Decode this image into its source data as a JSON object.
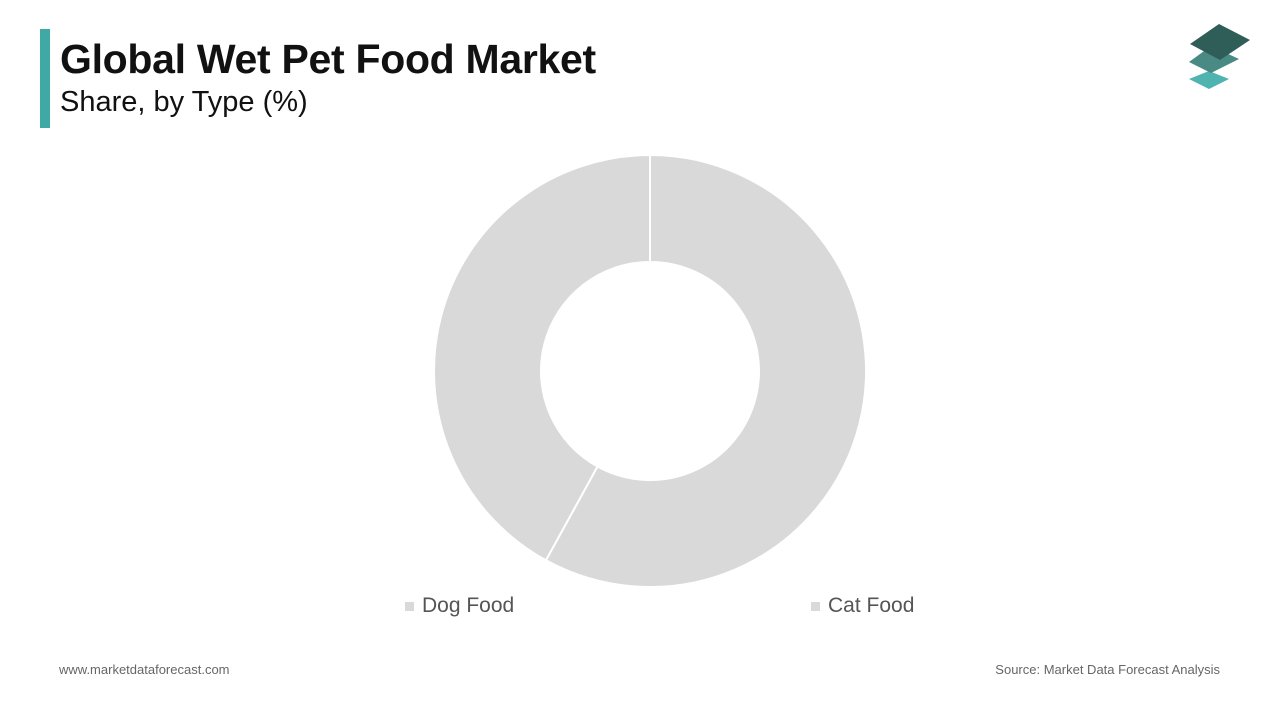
{
  "header": {
    "title": "Global Wet Pet Food Market",
    "subtitle": "Share, by Type (%)",
    "accent_color": "#3fa9a6"
  },
  "logo": {
    "icon": "layered-diamonds-logo-icon",
    "colors": [
      "#2f5d57",
      "#4a8a84",
      "#4fb3b0"
    ]
  },
  "chart_data": {
    "type": "pie",
    "variant": "donut",
    "title": "Global Wet Pet Food Market",
    "subtitle": "Share, by Type (%)",
    "categories": [
      "Dog Food",
      "Cat Food"
    ],
    "values": [
      58,
      42
    ],
    "colors": [
      "#d9d9d9",
      "#d9d9d9"
    ],
    "separator_color": "#ffffff",
    "legend_position": "bottom",
    "legend_swatch_color": "#d9d9d9"
  },
  "footer": {
    "website": "www.marketdataforecast.com",
    "source": "Source: Market Data Forecast Analysis"
  }
}
